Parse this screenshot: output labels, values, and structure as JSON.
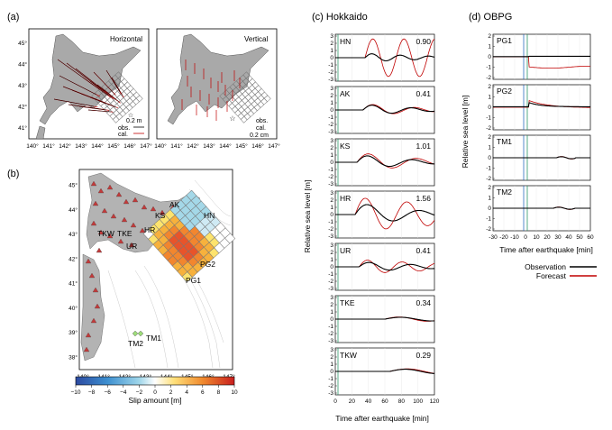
{
  "panels": {
    "a": {
      "label": "(a)",
      "left_title": "Horizontal",
      "right_title": "Vertical",
      "lat_ticks": [
        "45°",
        "44°",
        "43°",
        "42°",
        "41°"
      ],
      "lon_ticks": [
        "140°",
        "141°",
        "142°",
        "143°",
        "144°",
        "145°",
        "146°",
        "147°"
      ],
      "left_scale": "0.2 m",
      "right_scale": "0.2 cm",
      "obs_label": "obs.",
      "cal_label": "cal."
    },
    "b": {
      "label": "(b)",
      "lat_ticks": [
        "45°",
        "44°",
        "43°",
        "42°",
        "41°",
        "40°",
        "39°",
        "38°"
      ],
      "lon_ticks": [
        "140°",
        "141°",
        "142°",
        "143°",
        "144°",
        "145°",
        "146°",
        "147°"
      ],
      "stations": [
        "AK",
        "KS",
        "HN",
        "HR",
        "TKW",
        "TKE",
        "UR",
        "PG2",
        "PG1",
        "TM2",
        "TM1"
      ],
      "colorbar_ticks": [
        "−10",
        "−8",
        "−6",
        "−4",
        "−2",
        "0",
        "2",
        "4",
        "6",
        "8",
        "10"
      ],
      "colorbar_label": "Slip amount [m]"
    },
    "c": {
      "label": "(c) Hokkaido",
      "ylabel": "Relative sea level [m]",
      "xlabel": "Time after earthquake [min]",
      "xticks": [
        "0",
        "20",
        "40",
        "60",
        "80",
        "100",
        "120"
      ],
      "subplots": [
        {
          "station": "HN",
          "score": "0.90"
        },
        {
          "station": "AK",
          "score": "0.41"
        },
        {
          "station": "KS",
          "score": "1.01"
        },
        {
          "station": "HR",
          "score": "1.56"
        },
        {
          "station": "UR",
          "score": "0.41"
        },
        {
          "station": "TKE",
          "score": "0.34"
        },
        {
          "station": "TKW",
          "score": "0.29"
        }
      ]
    },
    "d": {
      "label": "(d) OBPG",
      "ylabel": "Relative sea level [m]",
      "xlabel": "Time after earthquake [min]",
      "xticks": [
        "-30",
        "-20",
        "-10",
        "0",
        "10",
        "20",
        "30",
        "40",
        "50",
        "60"
      ],
      "subplots": [
        {
          "station": "PG1"
        },
        {
          "station": "PG2"
        },
        {
          "station": "TM1"
        },
        {
          "station": "TM2"
        }
      ],
      "legend": {
        "observation": "Observation",
        "forecast": "Forecast"
      }
    }
  },
  "colors": {
    "observation": "#000000",
    "forecast": "#c00000",
    "land": "#a9a9a9",
    "grid": "#7a7a7a"
  }
}
